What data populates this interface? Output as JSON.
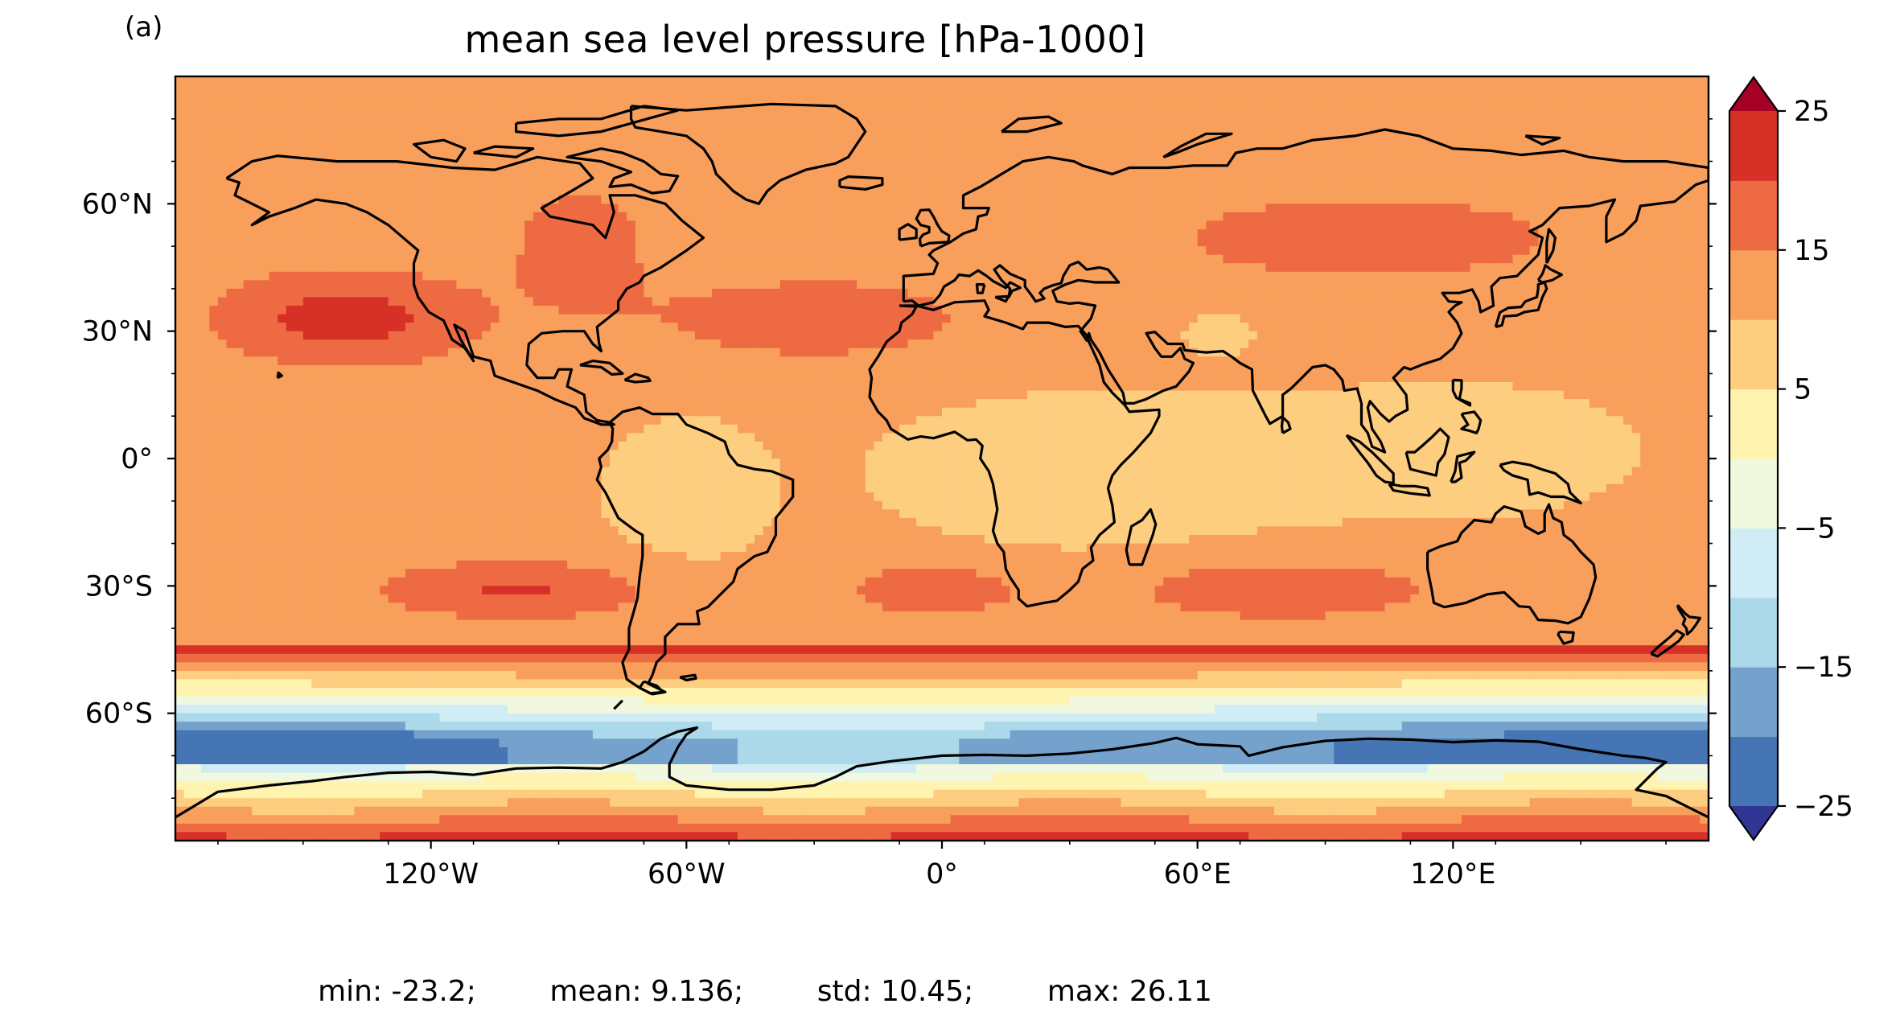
{
  "panel_label": "(a)",
  "title": "mean sea level pressure [hPa-1000]",
  "stats": {
    "min_label": "min: -23.2;",
    "mean_label": "mean: 9.136;",
    "std_label": "std: 10.45;",
    "max_label": "max: 26.11"
  },
  "map": {
    "projection": "PlateCarree",
    "lon_range": [
      -180,
      180
    ],
    "lat_range": [
      -90,
      90
    ],
    "y_ticks": [
      "60°N",
      "30°N",
      "0°",
      "30°S",
      "60°S"
    ],
    "y_tick_values": [
      60,
      30,
      0,
      -30,
      -60
    ],
    "x_ticks": [
      "120°W",
      "60°W",
      "0°",
      "60°E",
      "120°E"
    ],
    "x_tick_values": [
      -120,
      -60,
      0,
      60,
      120
    ],
    "coastline_color": "#000000"
  },
  "colorbar": {
    "tick_labels": [
      "25",
      "15",
      "5",
      "−5",
      "−15",
      "−25"
    ],
    "tick_values": [
      25,
      15,
      5,
      -5,
      -15,
      -25
    ],
    "levels": [
      -25,
      -20,
      -15,
      -10,
      -5,
      0,
      5,
      10,
      15,
      20,
      25
    ],
    "colors": [
      "#4575b4",
      "#74a2cc",
      "#abd9e9",
      "#d0ecf4",
      "#f1f8e0",
      "#fef4b0",
      "#fdcd80",
      "#f99f5c",
      "#ee6a43",
      "#d73027"
    ],
    "under_color": "#313695",
    "over_color": "#a50026"
  },
  "chart_data": {
    "type": "heatmap",
    "title": "mean sea level pressure [hPa-1000]",
    "units": "hPa-1000",
    "min": -23.2,
    "mean": 9.136,
    "std": 10.45,
    "max": 26.11,
    "lon_range": [
      -180,
      180
    ],
    "lat_range": [
      -90,
      90
    ],
    "levels": [
      -25,
      -20,
      -15,
      -10,
      -5,
      0,
      5,
      10,
      15,
      20,
      25
    ],
    "extend": "both"
  }
}
